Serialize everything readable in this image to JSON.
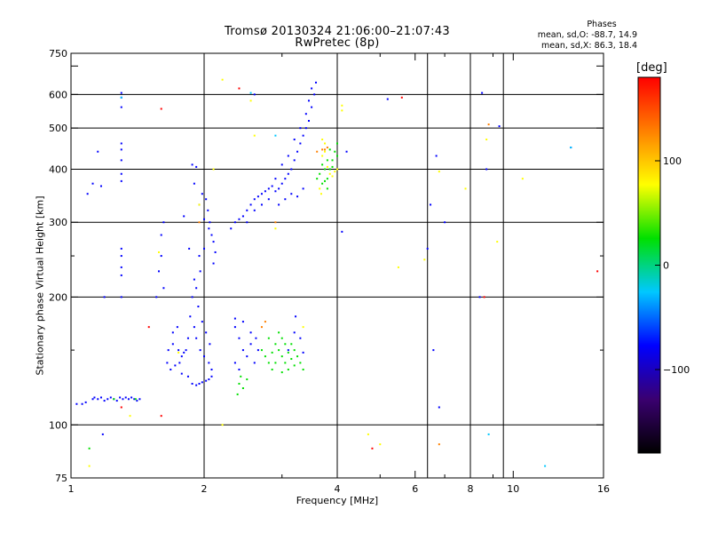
{
  "header": {
    "title_line1": "Tromsø 20130324 21:06:00–21:07:43",
    "title_line2": "RwPretec (8p)"
  },
  "phases": {
    "title": "Phases",
    "line_o": "mean, sd,O: -88.7, 14.9",
    "line_x": "mean, sd,X:  86.3, 18.4"
  },
  "chart_data": {
    "type": "scatter",
    "xlabel": "Frequency [MHz]",
    "ylabel": "Stationary phase Virtual Height [km]",
    "x_scale": "log",
    "y_scale": "log",
    "xlim": [
      1,
      16
    ],
    "ylim": [
      75,
      750
    ],
    "x_ticks": [
      1,
      2,
      4,
      6,
      8,
      10,
      16
    ],
    "x_ticks_minor": [
      3,
      5,
      7,
      9
    ],
    "y_ticks": [
      75,
      100,
      200,
      300,
      400,
      500,
      600,
      700,
      750
    ],
    "y_tick_labels": [
      "75",
      "100",
      "200",
      "300",
      "400",
      "500",
      "600",
      "",
      "750"
    ],
    "grid_x": [
      2,
      4,
      6.4,
      8,
      9.5
    ],
    "grid_y": [
      100,
      200,
      300,
      400,
      500,
      600
    ],
    "colorbar": {
      "unit": "[deg]",
      "min": -180,
      "max": 180,
      "ticks": [
        100,
        0,
        -100
      ],
      "colors": [
        "#000000",
        "#3a0070",
        "#0000ff",
        "#00c8ff",
        "#00e000",
        "#ffff00",
        "#ff8000",
        "#ff0000"
      ]
    },
    "series": [
      {
        "values": [
          [
            1.03,
            112
          ],
          [
            1.06,
            112
          ],
          [
            1.08,
            113
          ],
          [
            1.12,
            115
          ],
          [
            1.13,
            116
          ],
          [
            1.15,
            115
          ],
          [
            1.17,
            116
          ],
          [
            1.19,
            114
          ],
          [
            1.21,
            115
          ],
          [
            1.23,
            116
          ],
          [
            1.25,
            115
          ],
          [
            1.27,
            114
          ],
          [
            1.29,
            116
          ],
          [
            1.31,
            115
          ],
          [
            1.33,
            116
          ],
          [
            1.35,
            115
          ],
          [
            1.37,
            116
          ],
          [
            1.39,
            115
          ],
          [
            1.41,
            114
          ],
          [
            1.43,
            115
          ],
          [
            1.3,
            605
          ],
          [
            1.3,
            590
          ],
          [
            1.3,
            560
          ],
          [
            1.3,
            460
          ],
          [
            1.3,
            445
          ],
          [
            1.3,
            420
          ],
          [
            1.3,
            390
          ],
          [
            1.3,
            375
          ],
          [
            1.3,
            260
          ],
          [
            1.3,
            250
          ],
          [
            1.3,
            235
          ],
          [
            1.3,
            225
          ],
          [
            1.3,
            200
          ],
          [
            1.15,
            440
          ],
          [
            1.12,
            370
          ],
          [
            1.09,
            350
          ],
          [
            1.17,
            365
          ],
          [
            1.19,
            200
          ],
          [
            1.6,
            250
          ],
          [
            1.62,
            300
          ],
          [
            1.6,
            280
          ],
          [
            1.58,
            230
          ],
          [
            1.62,
            210
          ],
          [
            1.56,
            200
          ],
          [
            1.7,
            155
          ],
          [
            1.75,
            150
          ],
          [
            1.8,
            148
          ],
          [
            1.65,
            140
          ],
          [
            1.68,
            135
          ],
          [
            1.72,
            138
          ],
          [
            1.78,
            132
          ],
          [
            1.84,
            130
          ],
          [
            1.88,
            125
          ],
          [
            1.92,
            124
          ],
          [
            1.95,
            125
          ],
          [
            1.98,
            126
          ],
          [
            2.02,
            127
          ],
          [
            2.05,
            128
          ],
          [
            2.08,
            130
          ],
          [
            1.85,
            260
          ],
          [
            1.8,
            310
          ],
          [
            1.9,
            370
          ],
          [
            1.95,
            330
          ],
          [
            2.0,
            305
          ],
          [
            2.05,
            290
          ],
          [
            2.08,
            280
          ],
          [
            2.1,
            270
          ],
          [
            1.98,
            350
          ],
          [
            2.02,
            340
          ],
          [
            2.04,
            320
          ],
          [
            2.06,
            300
          ],
          [
            2.0,
            260
          ],
          [
            1.95,
            250
          ],
          [
            1.9,
            220
          ],
          [
            1.88,
            200
          ],
          [
            1.86,
            180
          ],
          [
            1.9,
            170
          ],
          [
            1.92,
            160
          ],
          [
            1.96,
            150
          ],
          [
            2.0,
            145
          ],
          [
            2.05,
            140
          ],
          [
            2.08,
            135
          ],
          [
            1.94,
            190
          ],
          [
            1.92,
            210
          ],
          [
            1.96,
            230
          ],
          [
            2.1,
            240
          ],
          [
            2.12,
            255
          ],
          [
            1.98,
            175
          ],
          [
            2.02,
            165
          ],
          [
            2.06,
            155
          ],
          [
            1.84,
            160
          ],
          [
            1.82,
            150
          ],
          [
            1.78,
            145
          ],
          [
            1.76,
            140
          ],
          [
            1.74,
            170
          ],
          [
            1.7,
            165
          ],
          [
            1.66,
            150
          ],
          [
            1.88,
            410
          ],
          [
            1.92,
            405
          ],
          [
            2.3,
            290
          ],
          [
            2.35,
            300
          ],
          [
            2.4,
            305
          ],
          [
            2.45,
            310
          ],
          [
            2.5,
            320
          ],
          [
            2.55,
            330
          ],
          [
            2.6,
            340
          ],
          [
            2.65,
            345
          ],
          [
            2.7,
            350
          ],
          [
            2.75,
            355
          ],
          [
            2.8,
            360
          ],
          [
            2.85,
            365
          ],
          [
            2.9,
            355
          ],
          [
            2.95,
            360
          ],
          [
            3.0,
            370
          ],
          [
            3.05,
            380
          ],
          [
            3.1,
            390
          ],
          [
            3.15,
            400
          ],
          [
            3.2,
            420
          ],
          [
            3.25,
            440
          ],
          [
            3.3,
            460
          ],
          [
            3.35,
            480
          ],
          [
            3.4,
            500
          ],
          [
            3.45,
            520
          ],
          [
            3.5,
            560
          ],
          [
            3.55,
            600
          ],
          [
            3.58,
            640
          ],
          [
            3.5,
            620
          ],
          [
            3.45,
            580
          ],
          [
            3.4,
            540
          ],
          [
            3.3,
            500
          ],
          [
            3.2,
            470
          ],
          [
            3.1,
            430
          ],
          [
            3.0,
            410
          ],
          [
            2.9,
            380
          ],
          [
            2.8,
            340
          ],
          [
            2.7,
            330
          ],
          [
            2.6,
            320
          ],
          [
            2.5,
            300
          ],
          [
            3.15,
            350
          ],
          [
            3.25,
            345
          ],
          [
            3.35,
            360
          ],
          [
            3.05,
            340
          ],
          [
            2.95,
            330
          ],
          [
            2.35,
            170
          ],
          [
            2.4,
            160
          ],
          [
            2.45,
            150
          ],
          [
            2.35,
            140
          ],
          [
            2.4,
            135
          ],
          [
            2.5,
            145
          ],
          [
            2.55,
            155
          ],
          [
            2.6,
            140
          ],
          [
            2.65,
            150
          ],
          [
            2.55,
            165
          ],
          [
            2.45,
            175
          ],
          [
            2.62,
            160
          ],
          [
            3.2,
            165
          ],
          [
            3.3,
            160
          ],
          [
            3.1,
            150
          ],
          [
            2.6,
            600
          ],
          [
            3.22,
            180
          ],
          [
            3.35,
            148
          ],
          [
            2.35,
            178
          ],
          [
            6.6,
            150
          ],
          [
            6.8,
            110
          ],
          [
            6.7,
            430
          ],
          [
            8.7,
            400
          ],
          [
            9.3,
            505
          ],
          [
            6.5,
            330
          ],
          [
            6.4,
            260
          ],
          [
            7.0,
            300
          ],
          [
            8.4,
            200
          ],
          [
            13.5,
            450
          ],
          [
            5.2,
            585
          ],
          [
            8.5,
            605
          ],
          [
            4.1,
            285
          ],
          [
            4.2,
            440
          ],
          [
            1.18,
            95
          ]
        ]
      },
      {
        "values": [
          [
            2.7,
            150
          ],
          [
            2.75,
            145
          ],
          [
            2.8,
            140
          ],
          [
            2.85,
            148
          ],
          [
            2.9,
            155
          ],
          [
            2.95,
            150
          ],
          [
            3.0,
            145
          ],
          [
            3.05,
            140
          ],
          [
            3.1,
            148
          ],
          [
            3.15,
            143
          ],
          [
            3.2,
            138
          ],
          [
            3.25,
            145
          ],
          [
            3.3,
            140
          ],
          [
            3.35,
            135
          ],
          [
            2.85,
            135
          ],
          [
            2.9,
            140
          ],
          [
            3.0,
            133
          ],
          [
            3.1,
            135
          ],
          [
            3.2,
            150
          ],
          [
            3.0,
            160
          ],
          [
            2.8,
            160
          ],
          [
            2.95,
            165
          ],
          [
            3.05,
            155
          ],
          [
            3.15,
            155
          ],
          [
            2.4,
            125
          ],
          [
            2.45,
            122
          ],
          [
            2.5,
            128
          ],
          [
            2.42,
            130
          ],
          [
            2.38,
            118
          ],
          [
            3.8,
            380
          ],
          [
            3.85,
            400
          ],
          [
            3.9,
            420
          ],
          [
            3.95,
            440
          ],
          [
            4.0,
            460
          ],
          [
            3.75,
            400
          ],
          [
            3.8,
            420
          ],
          [
            3.7,
            410
          ],
          [
            3.65,
            390
          ],
          [
            3.75,
            375
          ],
          [
            3.9,
            405
          ],
          [
            3.85,
            445
          ],
          [
            4.0,
            430
          ],
          [
            3.7,
            370
          ],
          [
            3.6,
            380
          ],
          [
            3.8,
            360
          ],
          [
            1.4,
            115
          ],
          [
            1.25,
            115
          ],
          [
            1.1,
            88
          ]
        ]
      },
      {
        "values": [
          [
            3.7,
            430
          ],
          [
            3.75,
            440
          ],
          [
            3.8,
            405
          ],
          [
            3.85,
            390
          ],
          [
            3.95,
            395
          ],
          [
            3.9,
            385
          ],
          [
            4.0,
            400
          ],
          [
            3.65,
            360
          ],
          [
            3.68,
            350
          ],
          [
            4.1,
            550
          ],
          [
            2.1,
            400
          ],
          [
            1.58,
            255
          ],
          [
            1.75,
            148
          ],
          [
            1.95,
            330
          ],
          [
            2.2,
            650
          ],
          [
            2.55,
            580
          ],
          [
            6.3,
            245
          ],
          [
            9.2,
            270
          ],
          [
            7.8,
            360
          ],
          [
            10.5,
            380
          ],
          [
            8.7,
            470
          ],
          [
            6.8,
            395
          ],
          [
            5.5,
            235
          ],
          [
            2.2,
            100
          ],
          [
            3.35,
            170
          ],
          [
            4.7,
            95
          ],
          [
            5.0,
            90
          ],
          [
            1.1,
            80
          ],
          [
            1.36,
            105
          ],
          [
            2.9,
            290
          ],
          [
            4.1,
            565
          ],
          [
            2.6,
            480
          ],
          [
            3.7,
            470
          ],
          [
            3.75,
            460
          ]
        ]
      },
      {
        "values": [
          [
            2.9,
            480
          ],
          [
            8.8,
            95
          ],
          [
            11.8,
            80
          ],
          [
            13.5,
            450
          ],
          [
            2.55,
            605
          ],
          [
            1.3,
            590
          ]
        ]
      },
      {
        "values": [
          [
            3.6,
            440
          ],
          [
            3.7,
            445
          ],
          [
            3.75,
            445
          ],
          [
            3.8,
            450
          ],
          [
            2.9,
            300
          ],
          [
            1.95,
            300
          ],
          [
            6.8,
            90
          ],
          [
            8.8,
            510
          ],
          [
            2.7,
            170
          ],
          [
            2.75,
            175
          ]
        ]
      },
      {
        "values": [
          [
            1.6,
            555
          ],
          [
            2.4,
            620
          ],
          [
            8.6,
            200
          ],
          [
            5.6,
            590
          ],
          [
            4.8,
            88
          ],
          [
            1.6,
            105
          ],
          [
            1.3,
            110
          ],
          [
            15.5,
            230
          ],
          [
            1.5,
            170
          ]
        ]
      }
    ]
  }
}
